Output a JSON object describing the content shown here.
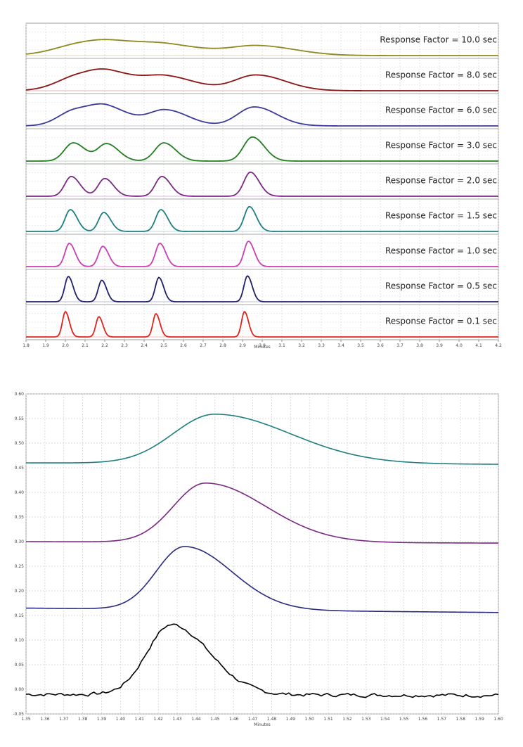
{
  "chart_data": [
    {
      "type": "line",
      "title": "",
      "xlabel": "Minutes",
      "ylabel": "",
      "xlim": [
        1.8,
        4.2
      ],
      "x_ticks": [
        "1.8",
        "1.9",
        "2.0",
        "2.1",
        "2.2",
        "2.3",
        "2.4",
        "2.5",
        "2.6",
        "2.7",
        "2.8",
        "2.9",
        "3.0",
        "3.1",
        "3.2",
        "3.3",
        "3.4",
        "3.5",
        "3.6",
        "3.7",
        "3.8",
        "3.9",
        "4.0",
        "4.1",
        "4.2"
      ],
      "peak_retention_minutes": [
        2.0,
        2.17,
        2.46,
        2.91
      ],
      "series": [
        {
          "name": "Response Factor = 10.0 sec",
          "label": "Response Factor = 10.0 sec",
          "color": "#8f8a1f",
          "peak_width": 0.14,
          "peak_shift": 0.07,
          "peak_heights": [
            0.35,
            0.35,
            0.35,
            0.38
          ]
        },
        {
          "name": "Response Factor = 8.0 sec",
          "label": "Response Factor = 8.0 sec",
          "color": "#8b1515",
          "peak_width": 0.11,
          "peak_shift": 0.06,
          "peak_heights": [
            0.5,
            0.55,
            0.52,
            0.62
          ]
        },
        {
          "name": "Response Factor = 6.0 sec",
          "label": "Response Factor = 6.0 sec",
          "color": "#3a3a9a",
          "peak_width": 0.085,
          "peak_shift": 0.05,
          "peak_heights": [
            0.6,
            0.62,
            0.62,
            0.75
          ]
        },
        {
          "name": "Response Factor = 3.0 sec",
          "label": "Response Factor = 3.0 sec",
          "color": "#237d23",
          "peak_width": 0.045,
          "peak_shift": 0.04,
          "peak_heights": [
            0.72,
            0.68,
            0.72,
            0.95
          ]
        },
        {
          "name": "Response Factor = 2.0 sec",
          "label": "Response Factor = 2.0 sec",
          "color": "#7a2a82",
          "peak_width": 0.033,
          "peak_shift": 0.03,
          "peak_heights": [
            0.78,
            0.7,
            0.78,
            0.95
          ]
        },
        {
          "name": "Response Factor = 1.5 sec",
          "label": "Response Factor = 1.5 sec",
          "color": "#1f7f80",
          "peak_width": 0.026,
          "peak_shift": 0.025,
          "peak_heights": [
            0.86,
            0.75,
            0.86,
            0.98
          ]
        },
        {
          "name": "Response Factor = 1.0 sec",
          "label": "Response Factor = 1.0 sec",
          "color": "#c93fb3",
          "peak_width": 0.022,
          "peak_shift": 0.02,
          "peak_heights": [
            0.92,
            0.8,
            0.92,
            1.0
          ]
        },
        {
          "name": "Response Factor = 0.5 sec",
          "label": "Response Factor = 0.5 sec",
          "color": "#1f1f6e",
          "peak_width": 0.018,
          "peak_shift": 0.015,
          "peak_heights": [
            1.0,
            0.85,
            0.96,
            1.02
          ]
        },
        {
          "name": "Response Factor = 0.1 sec",
          "label": "Response Factor = 0.1 sec",
          "color": "#e0241c",
          "peak_width": 0.015,
          "peak_shift": 0.0,
          "peak_heights": [
            1.0,
            0.8,
            0.92,
            1.0
          ]
        }
      ]
    },
    {
      "type": "line",
      "title": "",
      "xlabel": "Minutes",
      "ylabel": "",
      "xlim": [
        1.35,
        1.6
      ],
      "ylim": [
        -0.05,
        0.6
      ],
      "x_ticks": [
        "1.35",
        "1.36",
        "1.37",
        "1.38",
        "1.39",
        "1.40",
        "1.41",
        "1.42",
        "1.43",
        "1.44",
        "1.45",
        "1.46",
        "1.47",
        "1.48",
        "1.49",
        "1.50",
        "1.51",
        "1.52",
        "1.53",
        "1.54",
        "1.55",
        "1.56",
        "1.57",
        "1.58",
        "1.59",
        "1.60"
      ],
      "y_ticks": [
        "0.60",
        "0.55",
        "0.50",
        "0.45",
        "0.40",
        "0.35",
        "0.30",
        "0.25",
        "0.20",
        "0.15",
        "0.10",
        "0.05",
        "0.00",
        "-0.05"
      ],
      "series": [
        {
          "name": "teal",
          "color": "#1f7f80",
          "baseline_start": 0.46,
          "baseline_end": 0.457,
          "peak_height": 0.1,
          "peak_x": 1.45,
          "sigma_left": 0.022,
          "sigma_right": 0.04
        },
        {
          "name": "purple",
          "color": "#7a2a82",
          "baseline_start": 0.3,
          "baseline_end": 0.297,
          "peak_height": 0.12,
          "peak_x": 1.445,
          "sigma_left": 0.017,
          "sigma_right": 0.032
        },
        {
          "name": "navy",
          "color": "#2a2a80",
          "baseline_start": 0.165,
          "baseline_end": 0.156,
          "peak_height": 0.128,
          "peak_x": 1.434,
          "sigma_left": 0.015,
          "sigma_right": 0.025
        },
        {
          "name": "black",
          "color": "#000000",
          "baseline_start": -0.01,
          "baseline_end": -0.012,
          "peak_height": 0.142,
          "peak_x": 1.427,
          "sigma_left": 0.013,
          "sigma_right": 0.02,
          "noise": 0.004
        }
      ]
    }
  ]
}
